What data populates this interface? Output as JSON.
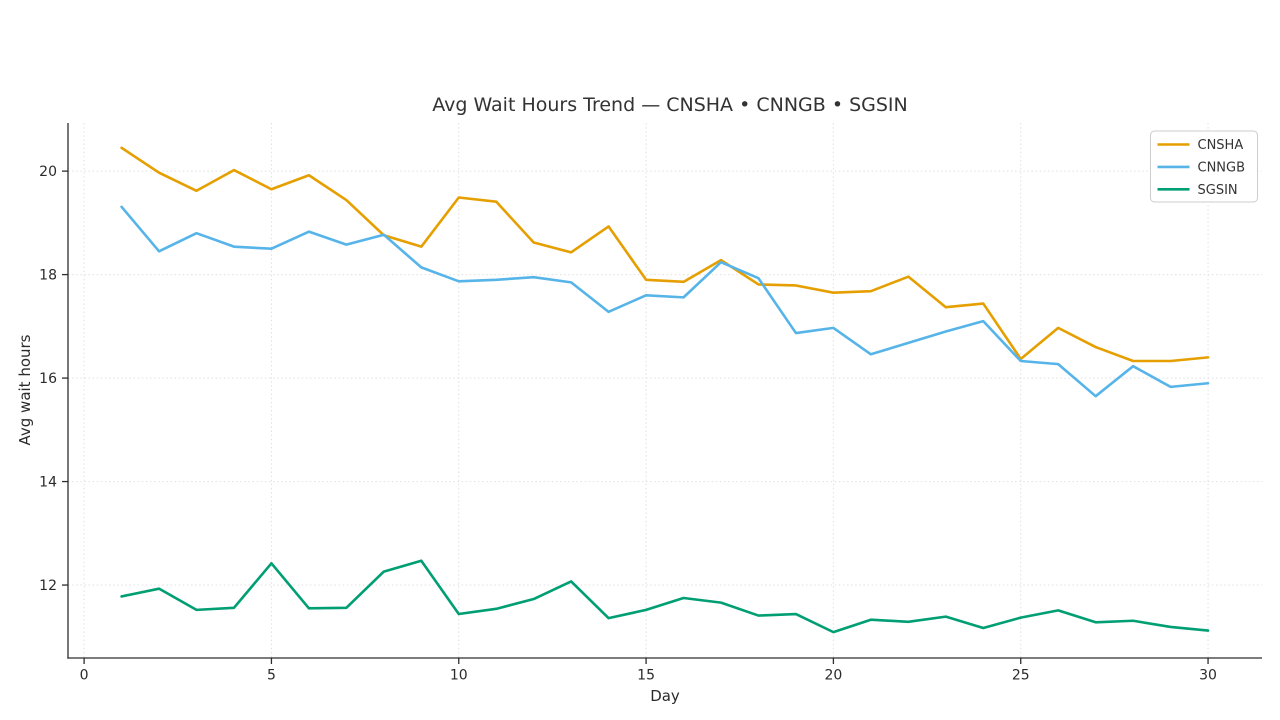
{
  "chart_data": {
    "type": "line",
    "title": "Avg Wait Hours Trend — CNSHA • CNNGB • SGSIN",
    "xlabel": "Day",
    "ylabel": "Avg wait hours",
    "x": [
      1,
      2,
      3,
      4,
      5,
      6,
      7,
      8,
      9,
      10,
      11,
      12,
      13,
      14,
      15,
      16,
      17,
      18,
      19,
      20,
      21,
      22,
      23,
      24,
      25,
      26,
      27,
      28,
      29,
      30
    ],
    "series": [
      {
        "name": "CNSHA",
        "color": "#E69F00",
        "values": [
          20.45,
          19.97,
          19.62,
          20.02,
          19.65,
          19.92,
          19.44,
          18.76,
          18.54,
          19.49,
          19.41,
          18.62,
          18.43,
          18.93,
          17.9,
          17.86,
          18.28,
          17.81,
          17.79,
          17.65,
          17.68,
          17.96,
          17.37,
          17.44,
          16.37,
          16.97,
          16.6,
          16.33,
          16.33,
          16.4
        ]
      },
      {
        "name": "CNNGB",
        "color": "#56B4E9",
        "values": [
          19.31,
          18.45,
          18.8,
          18.54,
          18.5,
          18.83,
          18.58,
          18.77,
          18.14,
          17.87,
          17.9,
          17.95,
          17.85,
          17.28,
          17.6,
          17.56,
          18.24,
          17.93,
          16.87,
          16.97,
          16.46,
          16.68,
          16.9,
          17.1,
          16.33,
          16.27,
          15.65,
          16.23,
          15.83,
          15.9
        ]
      },
      {
        "name": "SGSIN",
        "color": "#009E73",
        "values": [
          11.78,
          11.93,
          11.52,
          11.56,
          12.42,
          11.55,
          11.56,
          12.26,
          12.47,
          11.44,
          11.54,
          11.73,
          12.07,
          11.36,
          11.52,
          11.75,
          11.66,
          11.41,
          11.44,
          11.09,
          11.33,
          11.29,
          11.39,
          11.17,
          11.37,
          11.51,
          11.28,
          11.31,
          11.19,
          11.12
        ]
      }
    ],
    "xticks": [
      0,
      5,
      10,
      15,
      20,
      25,
      30
    ],
    "yticks": [
      12,
      14,
      16,
      18,
      20
    ],
    "xlim": [
      -0.43,
      31.44
    ],
    "ylim": [
      10.59,
      20.93
    ],
    "grid": true,
    "legend_position": "upper right",
    "colors": {
      "grid": "#e0e0e0",
      "spine": "#2e2e2e",
      "legend_border": "#cccccc",
      "background": "#ffffff"
    }
  }
}
